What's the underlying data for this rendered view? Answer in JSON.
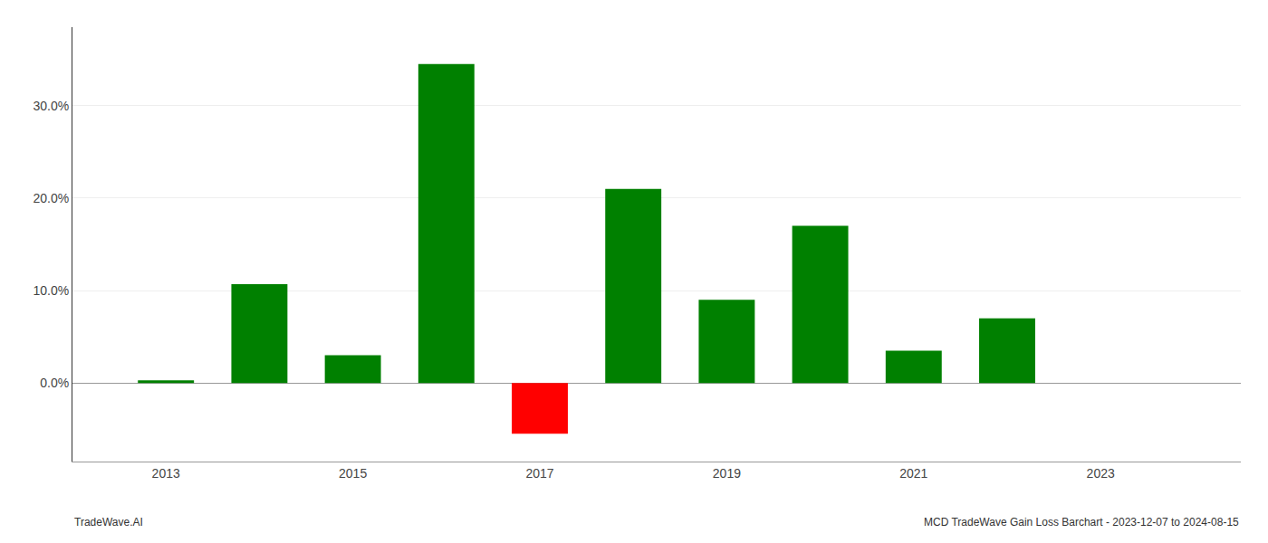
{
  "chart_data": {
    "type": "bar",
    "x": [
      2013,
      2014,
      2015,
      2016,
      2017,
      2018,
      2019,
      2020,
      2021,
      2022
    ],
    "values": [
      0.003,
      0.107,
      0.03,
      0.345,
      -0.055,
      0.21,
      0.09,
      0.17,
      0.035,
      0.07
    ],
    "colors": [
      "#008000",
      "#008000",
      "#008000",
      "#008000",
      "#ff0000",
      "#008000",
      "#008000",
      "#008000",
      "#008000",
      "#008000"
    ],
    "xlim": [
      2012.0,
      2024.5
    ],
    "ylim": [
      -0.085,
      0.385
    ],
    "xticks": [
      2013,
      2015,
      2017,
      2019,
      2021,
      2023
    ],
    "yticks": [
      {
        "value": 0.0,
        "label": "0.0%"
      },
      {
        "value": 0.1,
        "label": "10.0%"
      },
      {
        "value": 0.2,
        "label": "20.0%"
      },
      {
        "value": 0.3,
        "label": "30.0%"
      }
    ],
    "grid": true,
    "annotations": [
      "TradeWave.AI",
      "MCD TradeWave Gain Loss Barchart - 2023-12-07 to 2024-08-15"
    ]
  }
}
